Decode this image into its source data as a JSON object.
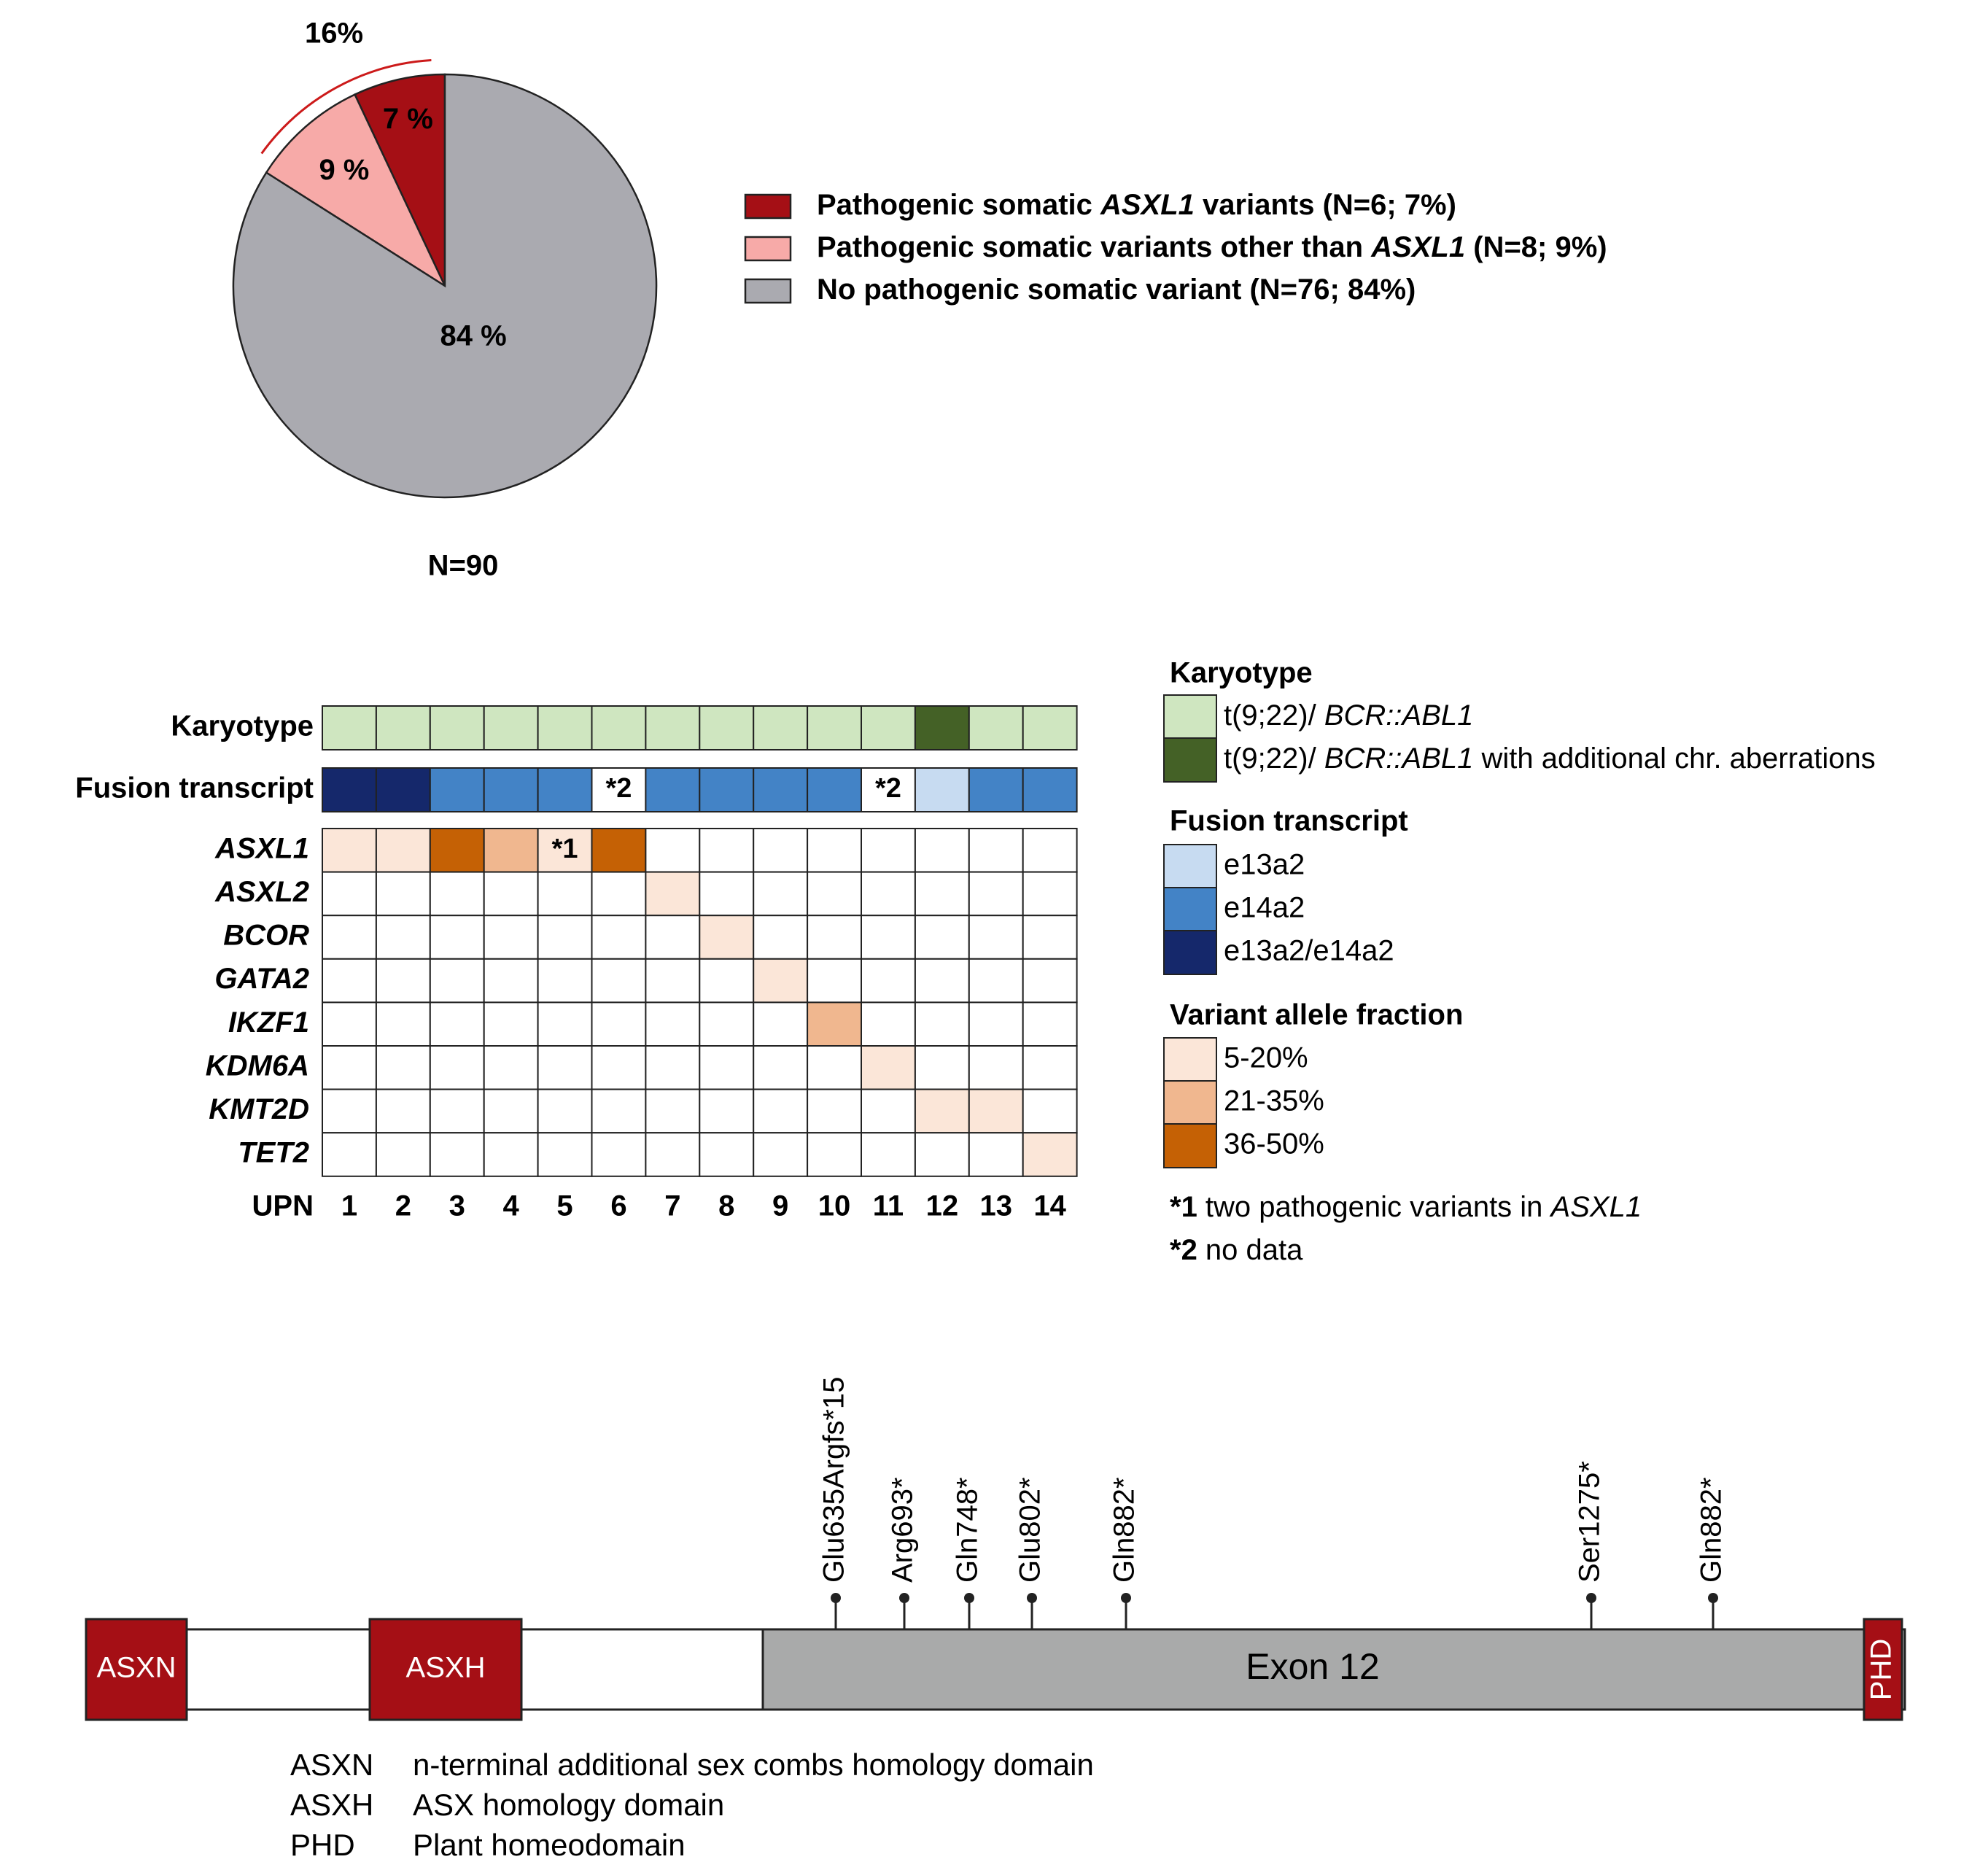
{
  "colors": {
    "asxl1": "#a50f15",
    "other": "#f7aaa8",
    "none": "#aaaab0",
    "kary_normal": "#cfe6c0",
    "kary_additional": "#446126",
    "fusion_e13a2": "#c7dbf1",
    "fusion_e14a2": "#4383c6",
    "fusion_both": "#15286b",
    "vaf_low": "#fbe6d8",
    "vaf_mid": "#f0b78f",
    "vaf_high": "#c56105",
    "domain": "#a50f15",
    "exon": "#a9aaaa",
    "arc": "#cc1a1a"
  },
  "chart_data": [
    {
      "type": "pie",
      "slices": [
        {
          "key": "asxl1",
          "value": 7,
          "label": "7 %",
          "color_key": "asxl1"
        },
        {
          "key": "other",
          "value": 9,
          "label": "9 %",
          "color_key": "other"
        },
        {
          "key": "none",
          "value": 84,
          "label": "84 %",
          "color_key": "none"
        }
      ],
      "bracket_label": "16%",
      "n_label": "N=90",
      "legend": [
        {
          "color_key": "asxl1",
          "text_before": "Pathogenic somatic ",
          "italic": "ASXL1",
          "text_after": " variants (N=6; 7%)"
        },
        {
          "color_key": "other",
          "text_before": "Pathogenic somatic variants other than ",
          "italic": "ASXL1",
          "text_after": "  (N=8; 9%)"
        },
        {
          "color_key": "none",
          "text_before": "No pathogenic somatic variant (N=76; 84%)",
          "italic": "",
          "text_after": ""
        }
      ]
    },
    {
      "type": "heatmap",
      "upn_label": "UPN",
      "columns": [
        "1",
        "2",
        "3",
        "4",
        "5",
        "6",
        "7",
        "8",
        "9",
        "10",
        "11",
        "12",
        "13",
        "14"
      ],
      "karyotype": {
        "label": "Karyotype",
        "values": [
          "normal",
          "normal",
          "normal",
          "normal",
          "normal",
          "normal",
          "normal",
          "normal",
          "normal",
          "normal",
          "normal",
          "additional",
          "normal",
          "normal"
        ]
      },
      "fusion": {
        "label": "Fusion transcript",
        "values": [
          "both",
          "both",
          "e14a2",
          "e14a2",
          "e14a2",
          "nodata",
          "e14a2",
          "e14a2",
          "e14a2",
          "e14a2",
          "nodata",
          "e13a2",
          "e14a2",
          "e14a2"
        ],
        "nodata_mark": "*2"
      },
      "genes": [
        {
          "name": "ASXL1",
          "values": [
            "low",
            "low",
            "high",
            "mid",
            "low",
            "high",
            "",
            "",
            "",
            "",
            "",
            "",
            "",
            ""
          ]
        },
        {
          "name": "ASXL2",
          "values": [
            "",
            "",
            "",
            "",
            "",
            "",
            "low",
            "",
            "",
            "",
            "",
            "",
            "",
            ""
          ]
        },
        {
          "name": "BCOR",
          "values": [
            "",
            "",
            "",
            "",
            "",
            "",
            "",
            "low",
            "",
            "",
            "",
            "",
            "",
            ""
          ]
        },
        {
          "name": "GATA2",
          "values": [
            "",
            "",
            "",
            "",
            "",
            "",
            "",
            "",
            "low",
            "",
            "",
            "",
            "",
            ""
          ]
        },
        {
          "name": "IKZF1",
          "values": [
            "",
            "",
            "",
            "",
            "",
            "",
            "",
            "",
            "",
            "mid",
            "",
            "",
            "",
            ""
          ]
        },
        {
          "name": "KDM6A",
          "values": [
            "",
            "",
            "",
            "",
            "",
            "",
            "",
            "",
            "",
            "",
            "low",
            "",
            "",
            ""
          ]
        },
        {
          "name": "KMT2D",
          "values": [
            "",
            "",
            "",
            "",
            "",
            "",
            "",
            "",
            "",
            "",
            "",
            "low",
            "low",
            ""
          ]
        },
        {
          "name": "TET2",
          "values": [
            "",
            "",
            "",
            "",
            "",
            "",
            "",
            "",
            "",
            "",
            "",
            "",
            "",
            "low"
          ]
        }
      ],
      "annotations": [
        {
          "gene": "ASXL1",
          "column": "5",
          "text": "*1"
        }
      ],
      "legend": {
        "karyotype_title": "Karyotype",
        "karyotype_items": [
          {
            "color_key": "kary_normal",
            "text": "t(9;22)/ ",
            "italic": "BCR::ABL1",
            "after": ""
          },
          {
            "color_key": "kary_additional",
            "text": "t(9;22)/ ",
            "italic": "BCR::ABL1",
            "after": "  with additional chr. aberrations"
          }
        ],
        "fusion_title": "Fusion transcript",
        "fusion_items": [
          {
            "color_key": "fusion_e13a2",
            "text": "e13a2"
          },
          {
            "color_key": "fusion_e14a2",
            "text": "e14a2"
          },
          {
            "color_key": "fusion_both",
            "text": "e13a2/e14a2"
          }
        ],
        "vaf_title": "Variant allele  fraction",
        "vaf_items": [
          {
            "color_key": "vaf_low",
            "text": "5-20%"
          },
          {
            "color_key": "vaf_mid",
            "text": "21-35%"
          },
          {
            "color_key": "vaf_high",
            "text": "36-50%"
          }
        ],
        "notes": [
          {
            "mark": "*1",
            "text": " two pathogenic variants in ",
            "italic": "ASXL1"
          },
          {
            "mark": "*2",
            "text": " no data",
            "italic": ""
          }
        ]
      }
    },
    {
      "type": "protein_diagram",
      "domains": [
        {
          "label": "ASXN"
        },
        {
          "label": "ASXH"
        },
        {
          "label": "PHD"
        }
      ],
      "exon_label": "Exon 12",
      "variants": [
        "Glu635Argfs*15",
        "Arg693*",
        "Gln748*",
        "Glu802*",
        "Gln882*",
        "Ser1275*",
        "Gln882*"
      ],
      "key": [
        {
          "abbr": "ASXN",
          "text": "n-terminal additional sex combs homology domain"
        },
        {
          "abbr": "ASXH",
          "text": "ASX homology domain"
        },
        {
          "abbr": "PHD",
          "text": "Plant homeodomain"
        }
      ]
    }
  ]
}
